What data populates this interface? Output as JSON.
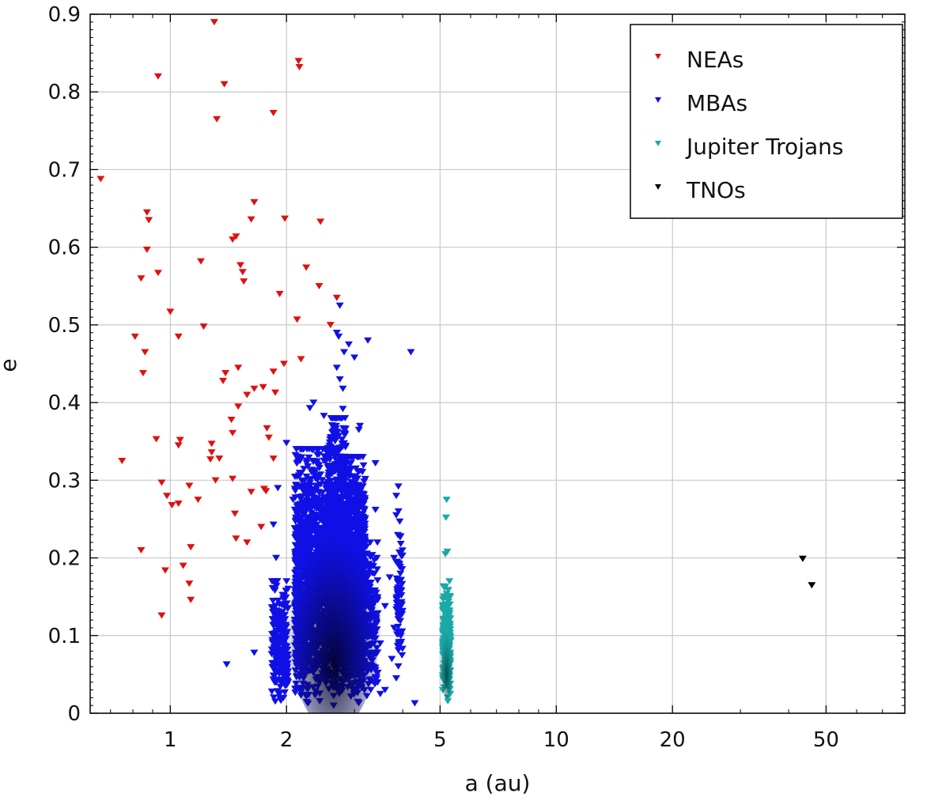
{
  "chart_data": {
    "type": "scatter",
    "title": "",
    "xlabel": "a (au)",
    "ylabel": "e",
    "xscale": "log",
    "xlim": [
      0.62,
      80
    ],
    "ylim": [
      0,
      0.9
    ],
    "grid": true,
    "legend": "top-right",
    "marker": "triangle-down",
    "x_ticks": [
      1,
      2,
      5,
      10,
      20,
      50
    ],
    "x_tick_labels": [
      "1",
      "2",
      "5",
      "10",
      "20",
      "50"
    ],
    "y_ticks": [
      0,
      0.1,
      0.2,
      0.3,
      0.4,
      0.5,
      0.6,
      0.7,
      0.8,
      0.9
    ],
    "y_tick_labels": [
      "0",
      "0.1",
      "0.2",
      "0.3",
      "0.4",
      "0.5",
      "0.6",
      "0.7",
      "0.8",
      "0.9"
    ],
    "series": [
      {
        "name": "NEAs",
        "color": "#e01010",
        "points": [
          [
            1.3,
            0.89
          ],
          [
            2.15,
            0.84
          ],
          [
            2.16,
            0.832
          ],
          [
            0.93,
            0.82
          ],
          [
            1.38,
            0.81
          ],
          [
            1.32,
            0.765
          ],
          [
            1.85,
            0.773
          ],
          [
            0.66,
            0.688
          ],
          [
            1.65,
            0.658
          ],
          [
            0.87,
            0.645
          ],
          [
            0.88,
            0.635
          ],
          [
            1.98,
            0.637
          ],
          [
            1.62,
            0.636
          ],
          [
            1.48,
            0.614
          ],
          [
            1.45,
            0.61
          ],
          [
            2.45,
            0.633
          ],
          [
            0.87,
            0.597
          ],
          [
            1.2,
            0.582
          ],
          [
            1.52,
            0.577
          ],
          [
            1.54,
            0.568
          ],
          [
            2.25,
            0.574
          ],
          [
            0.93,
            0.567
          ],
          [
            0.84,
            0.56
          ],
          [
            1.55,
            0.556
          ],
          [
            2.43,
            0.55
          ],
          [
            2.7,
            0.535
          ],
          [
            1.92,
            0.54
          ],
          [
            1.0,
            0.517
          ],
          [
            2.13,
            0.507
          ],
          [
            1.22,
            0.498
          ],
          [
            2.6,
            0.5
          ],
          [
            0.81,
            0.485
          ],
          [
            1.05,
            0.485
          ],
          [
            0.86,
            0.465
          ],
          [
            1.85,
            0.44
          ],
          [
            1.97,
            0.45
          ],
          [
            2.18,
            0.456
          ],
          [
            1.5,
            0.445
          ],
          [
            1.39,
            0.438
          ],
          [
            1.37,
            0.428
          ],
          [
            0.85,
            0.438
          ],
          [
            1.74,
            0.42
          ],
          [
            1.65,
            0.418
          ],
          [
            1.87,
            0.413
          ],
          [
            1.58,
            0.41
          ],
          [
            1.5,
            0.395
          ],
          [
            1.44,
            0.378
          ],
          [
            1.78,
            0.367
          ],
          [
            1.8,
            0.355
          ],
          [
            1.45,
            0.361
          ],
          [
            0.92,
            0.353
          ],
          [
            1.06,
            0.352
          ],
          [
            1.05,
            0.345
          ],
          [
            1.28,
            0.347
          ],
          [
            1.28,
            0.336
          ],
          [
            1.27,
            0.327
          ],
          [
            1.34,
            0.328
          ],
          [
            1.85,
            0.328
          ],
          [
            0.75,
            0.325
          ],
          [
            1.45,
            0.302
          ],
          [
            1.31,
            0.3
          ],
          [
            0.95,
            0.297
          ],
          [
            1.12,
            0.293
          ],
          [
            1.62,
            0.285
          ],
          [
            1.75,
            0.289
          ],
          [
            1.77,
            0.286
          ],
          [
            0.98,
            0.28
          ],
          [
            1.18,
            0.275
          ],
          [
            1.05,
            0.27
          ],
          [
            1.01,
            0.268
          ],
          [
            1.47,
            0.257
          ],
          [
            1.72,
            0.24
          ],
          [
            1.48,
            0.225
          ],
          [
            1.58,
            0.22
          ],
          [
            1.13,
            0.214
          ],
          [
            0.84,
            0.21
          ],
          [
            1.08,
            0.19
          ],
          [
            0.97,
            0.184
          ],
          [
            1.12,
            0.167
          ],
          [
            1.13,
            0.146
          ],
          [
            0.95,
            0.126
          ]
        ]
      },
      {
        "name": "MBAs",
        "color": "#1010e6",
        "points": [
          [
            2.75,
            0.525
          ],
          [
            2.7,
            0.49
          ],
          [
            2.73,
            0.485
          ],
          [
            3.25,
            0.48
          ],
          [
            2.9,
            0.475
          ],
          [
            2.82,
            0.465
          ],
          [
            4.2,
            0.465
          ],
          [
            3.0,
            0.458
          ],
          [
            2.7,
            0.445
          ],
          [
            2.75,
            0.43
          ],
          [
            2.8,
            0.418
          ],
          [
            2.35,
            0.4
          ],
          [
            2.3,
            0.393
          ],
          [
            2.8,
            0.392
          ],
          [
            2.5,
            0.383
          ],
          [
            2.64,
            0.38
          ],
          [
            3.1,
            0.37
          ],
          [
            3.08,
            0.365
          ],
          [
            2.0,
            0.348
          ],
          [
            3.4,
            0.322
          ],
          [
            1.9,
            0.29
          ],
          [
            3.9,
            0.292
          ],
          [
            3.85,
            0.28
          ],
          [
            2.08,
            0.275
          ],
          [
            3.4,
            0.262
          ],
          [
            3.85,
            0.255
          ],
          [
            1.85,
            0.243
          ],
          [
            3.95,
            0.228
          ],
          [
            1.88,
            0.2
          ],
          [
            3.8,
            0.2
          ],
          [
            3.3,
            0.188
          ],
          [
            3.7,
            0.175
          ],
          [
            3.9,
            0.16
          ],
          [
            3.4,
            0.15
          ],
          [
            1.95,
            0.14
          ],
          [
            3.6,
            0.138
          ],
          [
            3.3,
            0.12
          ],
          [
            1.98,
            0.11
          ],
          [
            3.8,
            0.11
          ],
          [
            3.3,
            0.1
          ],
          [
            3.5,
            0.09
          ],
          [
            1.65,
            0.078
          ],
          [
            1.4,
            0.063
          ],
          [
            3.75,
            0.07
          ],
          [
            3.85,
            0.045
          ],
          [
            4.3,
            0.013
          ],
          [
            1.92,
            0.02
          ],
          [
            3.5,
            0.025
          ],
          [
            3.6,
            0.03
          ]
        ],
        "clusters": [
          {
            "a_range": [
              2.1,
              2.55
            ],
            "e_range": [
              0.005,
              0.34
            ],
            "count": 1200
          },
          {
            "a_range": [
              2.55,
              2.85
            ],
            "e_range": [
              0.005,
              0.38
            ],
            "count": 1200
          },
          {
            "a_range": [
              2.85,
              3.2
            ],
            "e_range": [
              0.005,
              0.33
            ],
            "count": 1100
          },
          {
            "a_range": [
              1.83,
              2.02
            ],
            "e_range": [
              0.005,
              0.17
            ],
            "count": 220
          },
          {
            "a_range": [
              3.2,
              3.45
            ],
            "e_range": [
              0.01,
              0.22
            ],
            "count": 160
          },
          {
            "a_range": [
              3.85,
              4.0
            ],
            "e_range": [
              0.04,
              0.26
            ],
            "count": 80
          }
        ]
      },
      {
        "name": "Jupiter Trojans",
        "color": "#1aa8a8",
        "points": [
          [
            5.2,
            0.275
          ],
          [
            5.18,
            0.252
          ],
          [
            5.22,
            0.208
          ],
          [
            5.16,
            0.205
          ]
        ],
        "clusters": [
          {
            "a_range": [
              5.08,
              5.32
            ],
            "e_range": [
              0.01,
              0.17
            ],
            "count": 260
          }
        ]
      },
      {
        "name": "TNOs",
        "color": "#000000",
        "points": [
          [
            43.5,
            0.199
          ],
          [
            45.9,
            0.165
          ]
        ]
      }
    ]
  }
}
